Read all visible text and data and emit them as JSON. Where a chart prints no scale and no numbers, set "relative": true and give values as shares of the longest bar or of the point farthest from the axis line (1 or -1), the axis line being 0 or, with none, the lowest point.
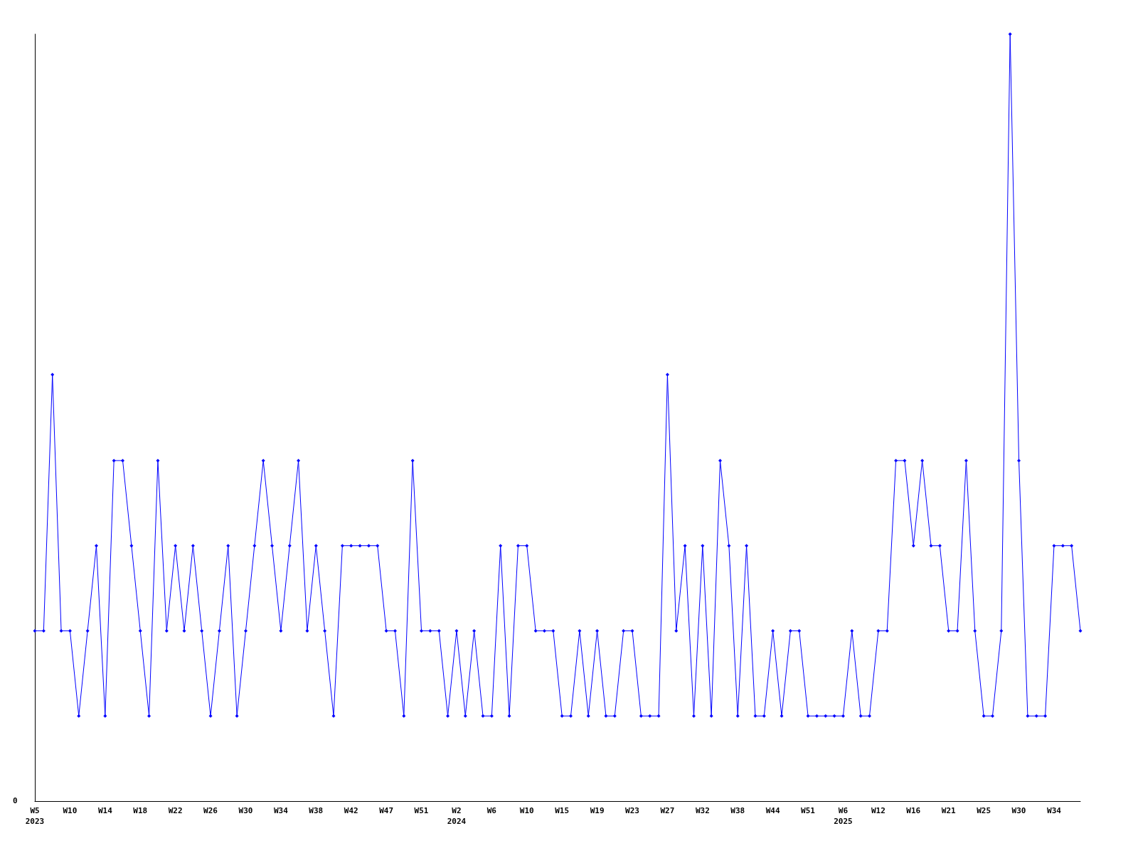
{
  "chart_data": {
    "type": "line",
    "relative": true,
    "marker": "diamond",
    "grid": false,
    "annotations": [
      "0"
    ],
    "categories": [
      "W5\n2023",
      null,
      null,
      null,
      "W10",
      null,
      null,
      null,
      "W14",
      null,
      null,
      null,
      "W18",
      null,
      null,
      null,
      "W22",
      null,
      null,
      null,
      "W26",
      null,
      null,
      null,
      "W30",
      null,
      null,
      null,
      "W34",
      null,
      null,
      null,
      "W38",
      null,
      null,
      null,
      "W42",
      null,
      null,
      null,
      "W47",
      null,
      null,
      null,
      "W51",
      null,
      null,
      null,
      "W2\n2024",
      null,
      null,
      null,
      "W6",
      null,
      null,
      null,
      "W10",
      null,
      null,
      null,
      "W15",
      null,
      null,
      null,
      "W19",
      null,
      null,
      null,
      "W23",
      null,
      null,
      null,
      "W27",
      null,
      null,
      null,
      "W32",
      null,
      null,
      null,
      "W38",
      null,
      null,
      null,
      "W44",
      null,
      null,
      null,
      "W51",
      null,
      null,
      null,
      "W6\n2025",
      null,
      null,
      null,
      "W12",
      null,
      null,
      null,
      "W16",
      null,
      null,
      null,
      "W21",
      null,
      null,
      null,
      "W25",
      null,
      null,
      null,
      "W30",
      null,
      null,
      null,
      "W34",
      null,
      null,
      null
    ],
    "series": [
      {
        "color": "#0000ff",
        "values": [
          0.222,
          0.222,
          0.556,
          0.222,
          0.222,
          0.111,
          0.222,
          0.333,
          0.111,
          0.444,
          0.444,
          0.333,
          0.222,
          0.111,
          0.444,
          0.222,
          0.333,
          0.222,
          0.333,
          0.222,
          0.111,
          0.222,
          0.333,
          0.111,
          0.222,
          0.333,
          0.444,
          0.333,
          0.222,
          0.333,
          0.444,
          0.222,
          0.333,
          0.222,
          0.111,
          0.333,
          0.333,
          0.333,
          0.333,
          0.333,
          0.222,
          0.222,
          0.111,
          0.444,
          0.222,
          0.222,
          0.222,
          0.111,
          0.222,
          0.111,
          0.222,
          0.111,
          0.111,
          0.333,
          0.111,
          0.333,
          0.333,
          0.222,
          0.222,
          0.222,
          0.111,
          0.111,
          0.222,
          0.111,
          0.222,
          0.111,
          0.111,
          0.222,
          0.222,
          0.111,
          0.111,
          0.111,
          0.556,
          0.222,
          0.333,
          0.111,
          0.333,
          0.111,
          0.444,
          0.333,
          0.111,
          0.333,
          0.111,
          0.111,
          0.222,
          0.111,
          0.222,
          0.222,
          0.111,
          0.111,
          0.111,
          0.111,
          0.111,
          0.222,
          0.111,
          0.111,
          0.222,
          0.222,
          0.444,
          0.444,
          0.333,
          0.444,
          0.333,
          0.333,
          0.222,
          0.222,
          0.444,
          0.222,
          0.111,
          0.111,
          0.222,
          1,
          0.444,
          0.111,
          0.111,
          0.111,
          0.333,
          0.333,
          0.333,
          0.222
        ]
      }
    ]
  }
}
